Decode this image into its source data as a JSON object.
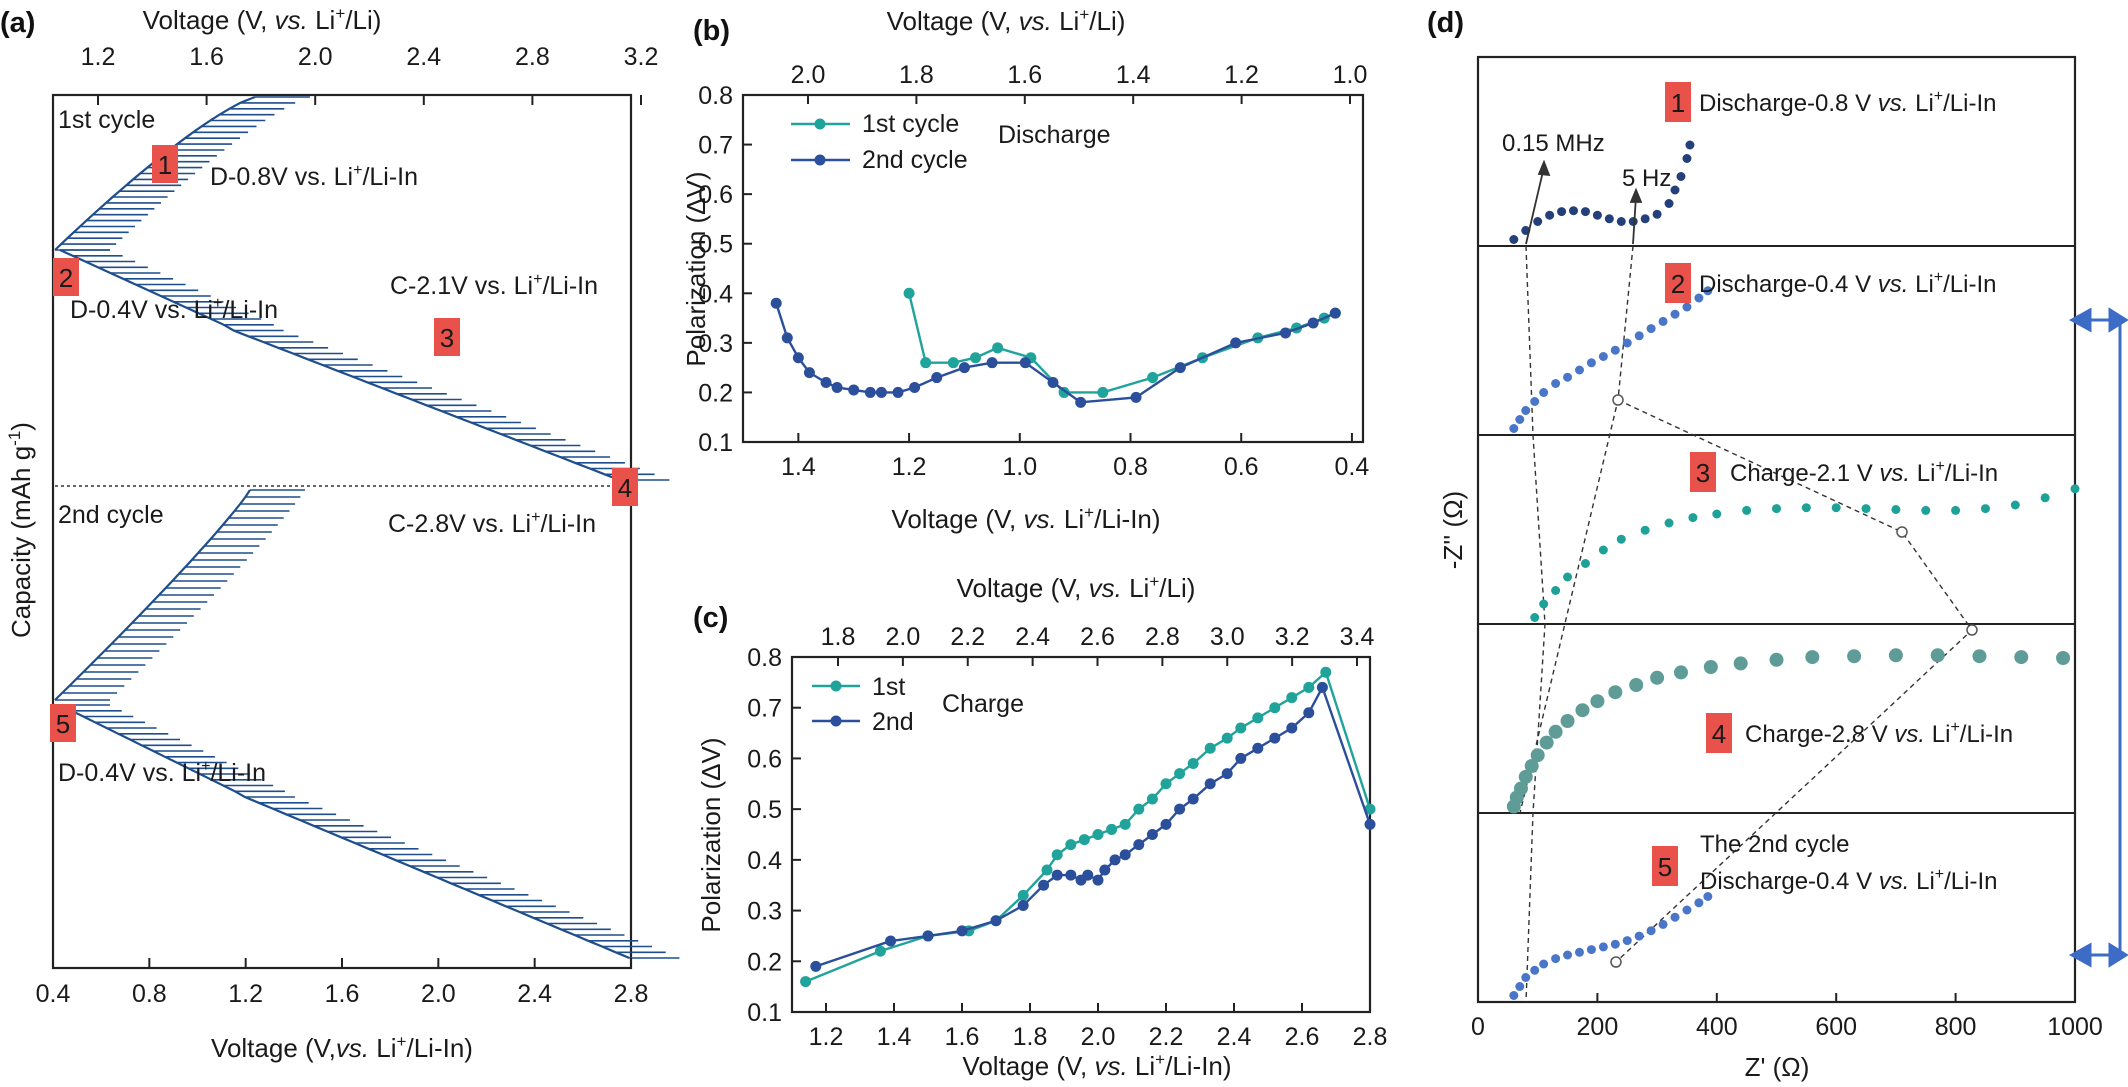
{
  "figure": {
    "panels": {
      "a": "(a)",
      "b": "(b)",
      "c": "(c)",
      "d": "(d)"
    }
  },
  "colors": {
    "cycle1": "#1fa39a",
    "cycle2": "#2b4f9a",
    "curve": "#1f4e8c",
    "marker": "#e8524a",
    "arrow": "#3d6cc7",
    "d_dark": "#24407a",
    "d_blue": "#4a76c9",
    "d_teal": "#1ea196",
    "d_gray": "#5f9c98"
  },
  "panel_a": {
    "top_label": {
      "pre": "Voltage (V, ",
      "vs": "vs.",
      "post1": " Li",
      "sup": "+",
      "post2": "/Li)"
    },
    "bottom_label": {
      "pre": "Voltage (V,",
      "vs": "vs.",
      "post1": " Li",
      "sup": "+",
      "post2": "/Li-In)"
    },
    "y_label": {
      "pre": "Capacity (mAh g",
      "sup": "-1",
      "post": ")"
    },
    "bottom_ticks": [
      "0.4",
      "0.8",
      "1.2",
      "1.6",
      "2.0",
      "2.4",
      "2.8"
    ],
    "top_ticks": [
      "1.2",
      "1.6",
      "2.0",
      "2.4",
      "2.8",
      "3.2"
    ],
    "cycle1": "1st cycle",
    "cycle2": "2nd cycle",
    "markers": [
      "1",
      "2",
      "3",
      "4",
      "5"
    ],
    "ann1": {
      "pre": "D-0.8V vs. Li",
      "sup": "+",
      "post": "/Li-In"
    },
    "ann2": {
      "pre": "D-0.4V vs. Li",
      "sup": "+",
      "post": "/Li-In"
    },
    "ann3": {
      "pre": "C-2.1V vs. Li",
      "sup": "+",
      "post": "/Li-In"
    },
    "ann4": {
      "pre": "C-2.8V vs. Li",
      "sup": "+",
      "post": "/Li-In"
    },
    "ann5": {
      "pre": "D-0.4V vs. Li",
      "sup": "+",
      "post": "/Li-In"
    }
  },
  "panel_d": {
    "x_label": "Z' (Ω)",
    "y_label": "-Z'' (Ω)",
    "x_ticks": [
      "0",
      "200",
      "400",
      "600",
      "800",
      "1000"
    ],
    "freq_hi": "0.15 MHz",
    "freq_lo": "5 Hz",
    "rows": [
      {
        "num": "1",
        "pre": "Discharge-0.8 V ",
        "vs": "vs.",
        "post1": " Li",
        "sup": "+",
        "post2": "/Li-In"
      },
      {
        "num": "2",
        "pre": "Discharge-0.4 V ",
        "vs": "vs.",
        "post1": " Li",
        "sup": "+",
        "post2": "/Li-In"
      },
      {
        "num": "3",
        "pre": "Charge-2.1 V ",
        "vs": "vs.",
        "post1": " Li",
        "sup": "+",
        "post2": "/Li-In"
      },
      {
        "num": "4",
        "pre": "Charge-2.8 V ",
        "vs": "vs.",
        "post1": " Li",
        "sup": "+",
        "post2": "/Li-In"
      },
      {
        "num": "5",
        "line1": "The 2nd cycle",
        "pre": "Discharge-0.4 V ",
        "vs": "vs.",
        "post1": " Li",
        "sup": "+",
        "post2": "/Li-In"
      }
    ]
  },
  "chart_data": [
    {
      "id": "b",
      "type": "line",
      "title": "Discharge",
      "xlabel": "Voltage (V, vs. Li+/Li-In)",
      "x2label": "Voltage (V, vs. Li+/Li)",
      "ylabel": "Polarization (ΔV)",
      "xlim": [
        1.5,
        0.38
      ],
      "ylim": [
        0.1,
        0.8
      ],
      "x_ticks": [
        "1.4",
        "1.2",
        "1.0",
        "0.8",
        "0.6",
        "0.4"
      ],
      "x2_ticks": [
        "2.0",
        "1.8",
        "1.6",
        "1.4",
        "1.2",
        "1.0"
      ],
      "y_ticks": [
        "0.1",
        "0.2",
        "0.3",
        "0.4",
        "0.5",
        "0.6",
        "0.7",
        "0.8"
      ],
      "legend": "top-left",
      "series": [
        {
          "name": "1st cycle",
          "x": [
            1.2,
            1.17,
            1.12,
            1.08,
            1.04,
            0.98,
            0.92,
            0.85,
            0.76,
            0.67,
            0.57,
            0.5,
            0.45,
            0.43
          ],
          "y": [
            0.4,
            0.26,
            0.26,
            0.27,
            0.29,
            0.27,
            0.2,
            0.2,
            0.23,
            0.27,
            0.31,
            0.33,
            0.35,
            0.36
          ]
        },
        {
          "name": "2nd cycle",
          "x": [
            1.44,
            1.42,
            1.4,
            1.38,
            1.35,
            1.33,
            1.3,
            1.27,
            1.25,
            1.22,
            1.19,
            1.15,
            1.1,
            1.05,
            0.99,
            0.94,
            0.89,
            0.79,
            0.71,
            0.61,
            0.52,
            0.47,
            0.43
          ],
          "y": [
            0.38,
            0.31,
            0.27,
            0.24,
            0.22,
            0.21,
            0.205,
            0.2,
            0.2,
            0.2,
            0.21,
            0.23,
            0.25,
            0.26,
            0.26,
            0.22,
            0.18,
            0.19,
            0.25,
            0.3,
            0.32,
            0.34,
            0.36
          ]
        }
      ]
    },
    {
      "id": "c",
      "type": "line",
      "title": "Charge",
      "xlabel": "Voltage (V, vs. Li+/Li-In)",
      "x2label": "Voltage (V, vs. Li+/Li)",
      "ylabel": "Polarization (ΔV)",
      "xlim": [
        1.1,
        2.8
      ],
      "ylim": [
        0.1,
        0.8
      ],
      "x_ticks": [
        "1.2",
        "1.4",
        "1.6",
        "1.8",
        "2.0",
        "2.2",
        "2.4",
        "2.6",
        "2.8"
      ],
      "x2_ticks": [
        "1.8",
        "2.0",
        "2.2",
        "2.4",
        "2.6",
        "2.8",
        "3.0",
        "3.2",
        "3.4"
      ],
      "y_ticks": [
        "0.1",
        "0.2",
        "0.3",
        "0.4",
        "0.5",
        "0.6",
        "0.7",
        "0.8"
      ],
      "legend": "top-left",
      "series": [
        {
          "name": "1st",
          "x": [
            1.14,
            1.36,
            1.5,
            1.62,
            1.7,
            1.78,
            1.85,
            1.88,
            1.92,
            1.96,
            2.0,
            2.04,
            2.08,
            2.12,
            2.16,
            2.2,
            2.24,
            2.28,
            2.33,
            2.38,
            2.42,
            2.47,
            2.52,
            2.57,
            2.62,
            2.67,
            2.8
          ],
          "y": [
            0.16,
            0.22,
            0.25,
            0.26,
            0.28,
            0.33,
            0.38,
            0.41,
            0.43,
            0.44,
            0.45,
            0.46,
            0.47,
            0.5,
            0.52,
            0.55,
            0.57,
            0.59,
            0.62,
            0.64,
            0.66,
            0.68,
            0.7,
            0.72,
            0.74,
            0.77,
            0.5
          ]
        },
        {
          "name": "2nd",
          "x": [
            1.17,
            1.39,
            1.5,
            1.6,
            1.7,
            1.78,
            1.84,
            1.88,
            1.92,
            1.95,
            1.97,
            2.0,
            2.02,
            2.05,
            2.08,
            2.12,
            2.16,
            2.2,
            2.24,
            2.28,
            2.33,
            2.38,
            2.42,
            2.47,
            2.52,
            2.57,
            2.62,
            2.66,
            2.8
          ],
          "y": [
            0.19,
            0.24,
            0.25,
            0.26,
            0.28,
            0.31,
            0.35,
            0.37,
            0.37,
            0.36,
            0.37,
            0.36,
            0.38,
            0.4,
            0.41,
            0.43,
            0.45,
            0.47,
            0.5,
            0.52,
            0.55,
            0.57,
            0.6,
            0.62,
            0.64,
            0.66,
            0.69,
            0.74,
            0.47
          ]
        }
      ]
    },
    {
      "id": "d",
      "type": "scatter",
      "title": "",
      "xlabel": "Z' (Ω)",
      "ylabel": "-Z'' (Ω)",
      "xlim": [
        0,
        1000
      ],
      "x_ticks": [
        "0",
        "200",
        "400",
        "600",
        "800",
        "1000"
      ],
      "series": [
        {
          "name": "1",
          "x": [
            60,
            80,
            100,
            120,
            140,
            160,
            180,
            200,
            220,
            240,
            260,
            280,
            300,
            320,
            330,
            340,
            350,
            355
          ],
          "y": [
            5,
            15,
            25,
            32,
            36,
            37,
            36,
            32,
            28,
            25,
            25,
            28,
            33,
            45,
            60,
            75,
            95,
            110
          ]
        },
        {
          "name": "2",
          "x": [
            60,
            70,
            80,
            95,
            110,
            130,
            150,
            170,
            190,
            210,
            230,
            250,
            270,
            290,
            310,
            330,
            350,
            370,
            385
          ],
          "y": [
            5,
            15,
            25,
            35,
            45,
            55,
            62,
            70,
            78,
            85,
            92,
            100,
            108,
            116,
            124,
            132,
            140,
            150,
            158
          ]
        },
        {
          "name": "3",
          "x": [
            95,
            110,
            130,
            150,
            180,
            210,
            240,
            280,
            320,
            360,
            400,
            450,
            500,
            550,
            600,
            650,
            700,
            750,
            800,
            850,
            900,
            950,
            1000
          ],
          "y": [
            5,
            20,
            35,
            50,
            65,
            80,
            92,
            102,
            110,
            116,
            120,
            124,
            126,
            127,
            127,
            126,
            125,
            124,
            124,
            126,
            130,
            138,
            148
          ]
        },
        {
          "name": "4",
          "x": [
            60,
            65,
            72,
            80,
            90,
            100,
            115,
            130,
            150,
            175,
            200,
            230,
            265,
            300,
            340,
            390,
            440,
            500,
            560,
            630,
            700,
            770,
            840,
            910,
            980
          ],
          "y": [
            5,
            15,
            25,
            38,
            50,
            62,
            76,
            88,
            100,
            112,
            122,
            132,
            140,
            148,
            154,
            160,
            164,
            168,
            171,
            172,
            173,
            173,
            172,
            171,
            170
          ]
        },
        {
          "name": "5",
          "x": [
            60,
            70,
            80,
            95,
            110,
            130,
            150,
            170,
            190,
            210,
            230,
            250,
            270,
            290,
            310,
            330,
            350,
            370,
            385
          ],
          "y": [
            5,
            15,
            25,
            33,
            40,
            46,
            50,
            53,
            56,
            59,
            62,
            66,
            71,
            77,
            84,
            92,
            100,
            108,
            115
          ]
        }
      ]
    }
  ]
}
